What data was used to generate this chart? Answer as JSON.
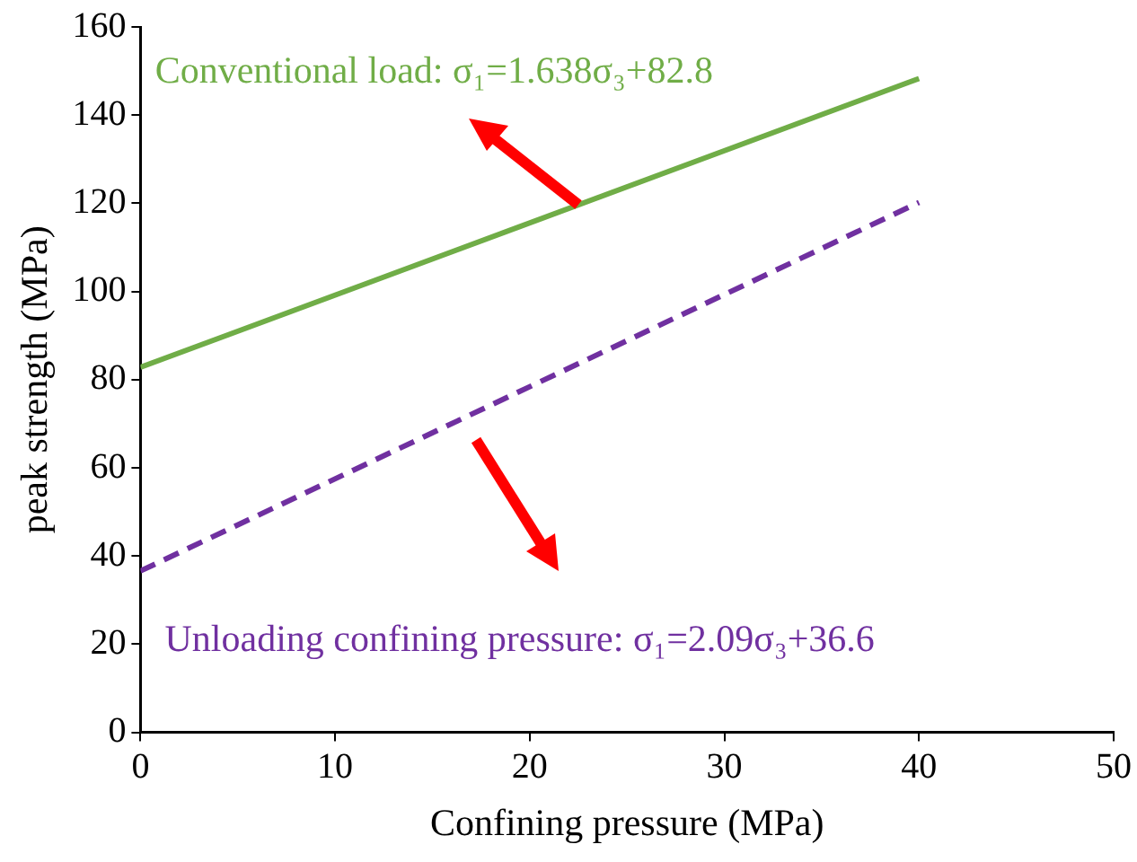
{
  "chart_data": {
    "type": "line",
    "xlabel": "Confining pressure (MPa)",
    "ylabel": "peak strength (MPa)",
    "series": [
      {
        "color": "#70ad47",
        "values": [
          82.8,
          148.3
        ],
        "line_style": "solid"
      },
      {
        "color": "#7030a0",
        "values": [
          36.6,
          120.2
        ],
        "line_style": "dashed"
      }
    ],
    "x": [
      0,
      40
    ],
    "annotations": [
      {
        "text": "Conventional load: σ₁=1.638σ₃+82.8",
        "x": 22.5,
        "y": 119.7
      },
      "Unloading confining pressure: σ₁=2.09σ₃+36.6"
    ],
    "xlim": [
      0,
      50
    ],
    "xticks": [
      0,
      10,
      20,
      30,
      40,
      50
    ],
    "ylim": [
      0,
      160
    ],
    "yticks": [
      0,
      20,
      40,
      60,
      80,
      100,
      120,
      140,
      160
    ],
    "marker": "none",
    "legend": false,
    "grid": false
  }
}
